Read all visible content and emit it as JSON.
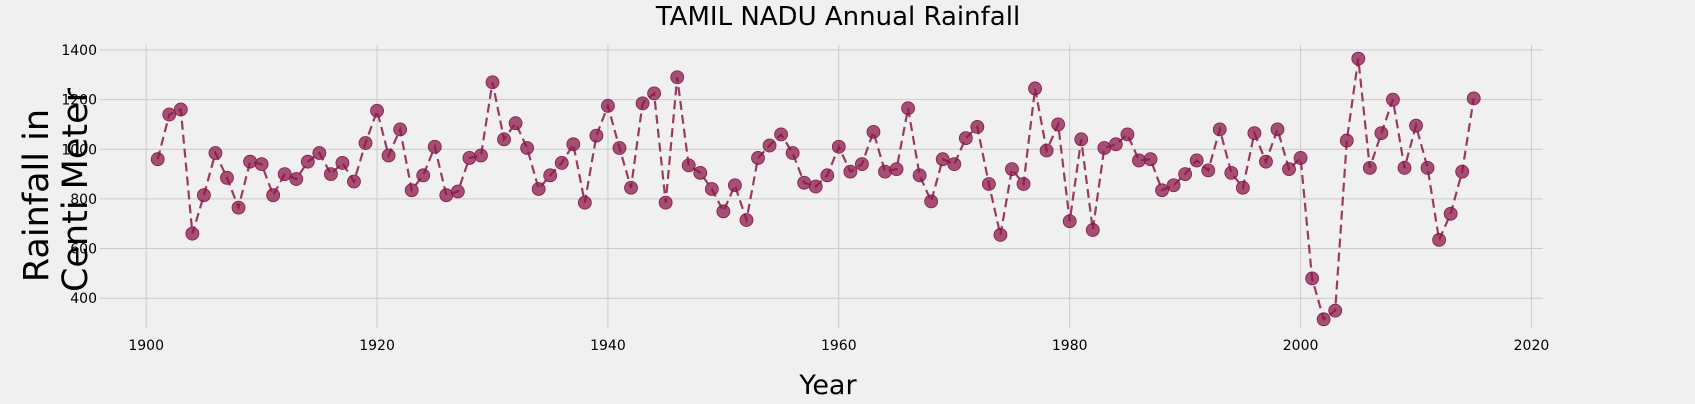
{
  "chart_data": {
    "type": "line",
    "title": "TAMIL NADU Annual Rainfall",
    "xlabel": "Year",
    "ylabel_lines": [
      "Rainfall in",
      "Centi Meter"
    ],
    "xlim": [
      1896,
      2021
    ],
    "ylim": [
      280,
      1420
    ],
    "xticks": [
      1900,
      1920,
      1940,
      1960,
      1980,
      2000,
      2020
    ],
    "yticks": [
      400,
      600,
      800,
      1000,
      1200,
      1400
    ],
    "grid": true,
    "line_style": "dashed",
    "marker": "circle",
    "color": "#8b1a4a",
    "series": [
      {
        "x": [
          1901,
          1902,
          1903,
          1904,
          1905,
          1906,
          1907,
          1908,
          1909,
          1910,
          1911,
          1912,
          1913,
          1914,
          1915,
          1916,
          1917,
          1918,
          1919,
          1920,
          1921,
          1922,
          1923,
          1924,
          1925,
          1926,
          1927,
          1928,
          1929,
          1930,
          1931,
          1932,
          1933,
          1934,
          1935,
          1936,
          1937,
          1938,
          1939,
          1940,
          1941,
          1942,
          1943,
          1944,
          1945,
          1946,
          1947,
          1948,
          1949,
          1950,
          1951,
          1952,
          1953,
          1954,
          1955,
          1956,
          1957,
          1958,
          1959,
          1960,
          1961,
          1962,
          1963,
          1964,
          1965,
          1966,
          1967,
          1968,
          1969,
          1970,
          1971,
          1972,
          1973,
          1974,
          1975,
          1976,
          1977,
          1978,
          1979,
          1980,
          1981,
          1982,
          1983,
          1984,
          1985,
          1986,
          1987,
          1988,
          1989,
          1990,
          1991,
          1992,
          1993,
          1994,
          1995,
          1996,
          1997,
          1998,
          1999,
          2000,
          2001,
          2002,
          2003,
          2004,
          2005,
          2006,
          2007,
          2008,
          2009,
          2010,
          2011,
          2012,
          2013,
          2014,
          2015
        ],
        "y": [
          960,
          1140,
          1160,
          660,
          815,
          985,
          885,
          765,
          950,
          940,
          815,
          900,
          880,
          950,
          985,
          900,
          945,
          870,
          1025,
          1155,
          975,
          1080,
          835,
          895,
          1010,
          815,
          830,
          965,
          975,
          1270,
          1040,
          1105,
          1005,
          840,
          895,
          945,
          1020,
          785,
          1055,
          1175,
          1005,
          845,
          1185,
          1225,
          785,
          1290,
          935,
          905,
          840,
          750,
          855,
          715,
          965,
          1015,
          1060,
          985,
          865,
          850,
          895,
          1010,
          910,
          940,
          1070,
          910,
          920,
          1165,
          895,
          790,
          960,
          940,
          1045,
          1090,
          860,
          655,
          920,
          860,
          1245,
          995,
          1100,
          710,
          1040,
          675,
          1005,
          1020,
          1060,
          955,
          960,
          835,
          855,
          900,
          955,
          915,
          1080,
          905,
          845,
          1065,
          950,
          1080,
          920,
          965,
          480,
          315,
          350,
          1035,
          1365,
          925,
          1065,
          1200,
          925,
          1095,
          925,
          635,
          740,
          910,
          1205
        ]
      }
    ]
  }
}
